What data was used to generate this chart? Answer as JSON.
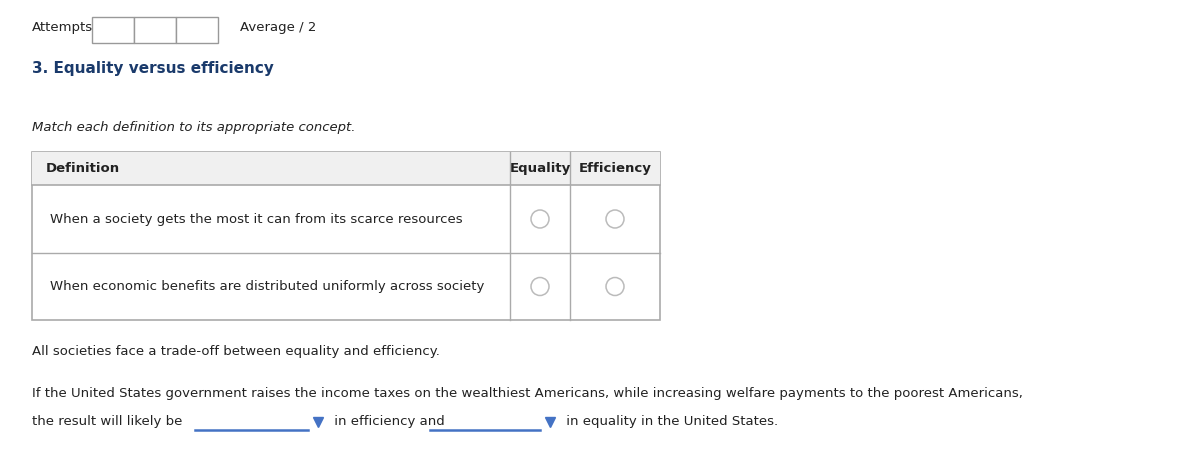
{
  "bg_color": "#ffffff",
  "attempts_label": "Attempts",
  "average_label": "Average / 2",
  "question_title": "3. Equality versus efficiency",
  "question_title_color": "#1a3a6b",
  "instruction": "Match each definition to its appropriate concept.",
  "table_header_def": "Definition",
  "table_header_eq": "Equality",
  "table_header_eff": "Efficiency",
  "table_row1": "When a society gets the most it can from its scarce resources",
  "table_row2": "When economic benefits are distributed uniformly across society",
  "note": "All societies face a trade-off between equality and efficiency.",
  "sentence_part1": "If the United States government raises the income taxes on the wealthiest Americans, while increasing welfare payments to the poorest Americans,",
  "sentence_part2": "the result will likely be",
  "sentence_mid": " in efficiency and",
  "sentence_end": " in equality in the United States.",
  "dropdown_color": "#4472c4",
  "radio_color": "#aaaaaa",
  "table_border_color": "#aaaaaa",
  "text_color": "#222222"
}
